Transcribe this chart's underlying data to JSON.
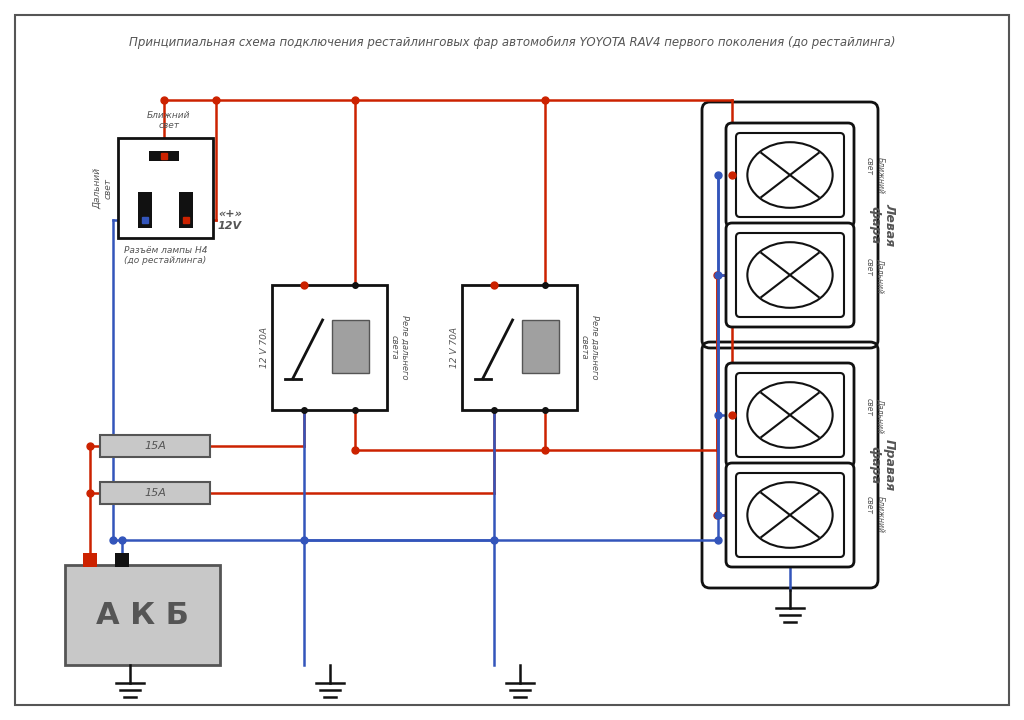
{
  "title": "Принципиальная схема подключения рестайлинговых фар автомобиля YOYOTA RAV4 первого поколения (до рестайлинга)",
  "bg_color": "#ffffff",
  "red": "#cc2200",
  "blue": "#3355bb",
  "black": "#111111",
  "darkgray": "#555555",
  "connector_label": "Разъём лампы H4\n(до рестайлинга)",
  "blizhniy_label": "Ближний\nсвет",
  "dalniy_label": "Дальний\nсвет",
  "relay_label": "12 V 70A",
  "relay_desc": "Реле дальнего\nсвета",
  "fuse1": "15А",
  "fuse2": "15А",
  "akb_label": "А К Б",
  "left_headlight": "Левая\nфара",
  "right_headlight": "Правая\nфара",
  "plus12": "«+»\n12V"
}
